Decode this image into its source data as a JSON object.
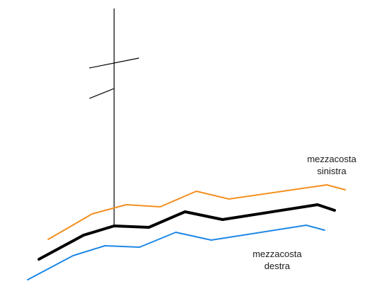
{
  "labels": {
    "left_slope_line1": "mezzacosta",
    "left_slope_line2": "sinistra",
    "right_slope_line1": "mezzacosta",
    "right_slope_line2": "destra"
  },
  "colors": {
    "left_slope": "#f39020",
    "center_line": "#000000",
    "right_slope": "#1e88e5",
    "pole": "#000000"
  }
}
